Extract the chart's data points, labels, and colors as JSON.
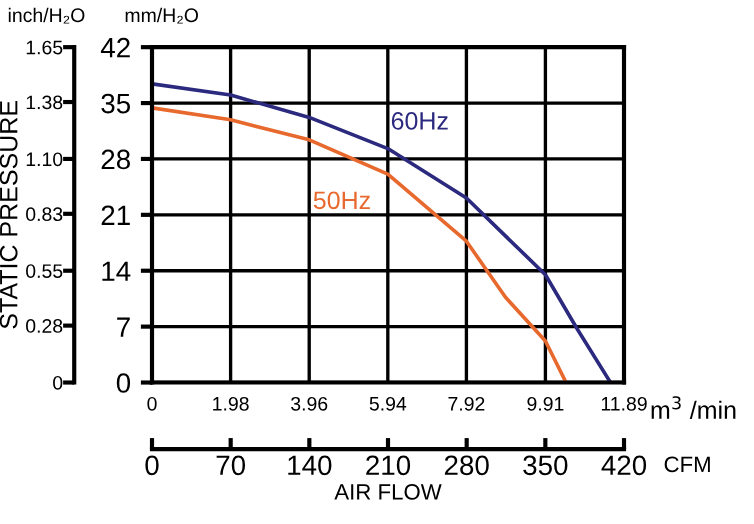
{
  "chart_data": {
    "type": "line",
    "ylabel": "STATIC PRESSURE",
    "xlabel": "AIR FLOW",
    "annotations": [
      "inch/H₂O",
      "mm/H₂O",
      "m$^{3}$ /min",
      "CFM"
    ],
    "series": [
      {
        "name": "60Hz",
        "color": "#2b2a7f",
        "axis": "y2",
        "x": [
          0,
          1.98,
          3.96,
          5.94,
          7.92,
          9.91,
          10.7,
          11.55
        ],
        "values": [
          37.4,
          36.0,
          33.2,
          29.3,
          23.1,
          13.5,
          6.8,
          0
        ]
      },
      {
        "name": "50Hz",
        "color": "#e8692d",
        "axis": "y2",
        "x": [
          0,
          1.98,
          3.96,
          5.94,
          7.92,
          8.9,
          9.91,
          10.43
        ],
        "values": [
          34.4,
          32.9,
          30.4,
          26.1,
          17.7,
          10.7,
          5.2,
          0
        ]
      }
    ],
    "xlim": [
      0,
      11.89
    ],
    "xticks": [
      0,
      1.98,
      3.96,
      5.94,
      7.92,
      9.91,
      11.89
    ],
    "x2lim": [
      0,
      420
    ],
    "x2ticks": [
      0,
      70,
      140,
      210,
      280,
      350,
      420
    ],
    "y2lim": [
      0,
      42
    ],
    "y2ticks": [
      0,
      7,
      14,
      21,
      28,
      35,
      42
    ],
    "ylim": [
      0,
      1.65
    ],
    "yticks": [
      0,
      0.28,
      0.55,
      0.83,
      {
        "value": 1.1,
        "label": "1.10"
      },
      {
        "value": 1.38,
        "label": "1.38"
      },
      1.65
    ],
    "legend": false,
    "grid": true,
    "marker": "none",
    "line_style": "solid"
  }
}
